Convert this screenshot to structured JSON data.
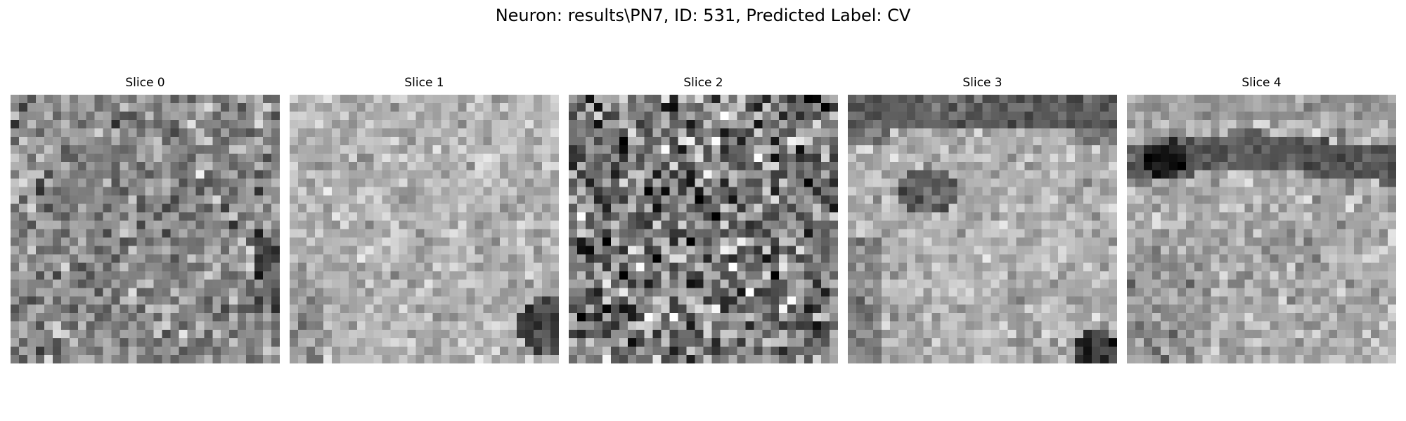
{
  "figure": {
    "title": "Neuron: results\\PN7, ID: 531, Predicted Label: CV"
  },
  "panels": [
    {
      "title": "Slice 0",
      "texture": "noisy-gray-patch"
    },
    {
      "title": "Slice 1",
      "texture": "light-gray-patch-dark-bottom-right"
    },
    {
      "title": "Slice 2",
      "texture": "high-contrast-noise-patch"
    },
    {
      "title": "Slice 3",
      "texture": "bright-blob-dark-rim-top"
    },
    {
      "title": "Slice 4",
      "texture": "bright-region-dark-band-top"
    }
  ],
  "colormap": "gray"
}
